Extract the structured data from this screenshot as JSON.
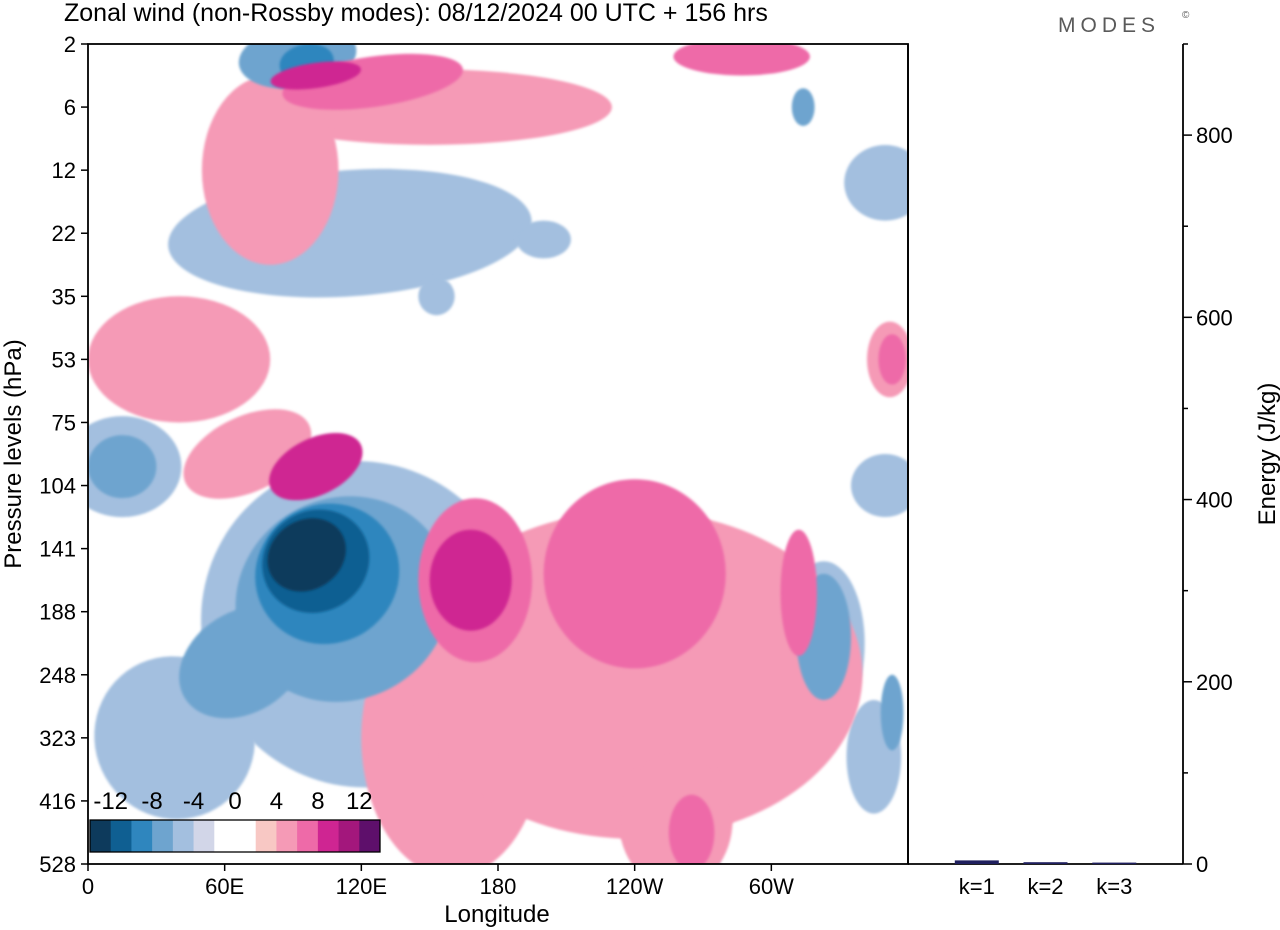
{
  "title": "Zonal wind (non-Rossby modes):  08/12/2024  00 UTC  + 156 hrs",
  "brand": "MODES",
  "brand_mark": "©",
  "chart_data": [
    {
      "type": "heatmap",
      "title": "Zonal wind (non-Rossby modes):  08/12/2024  00 UTC  + 156 hrs",
      "xlabel": "Longitude",
      "ylabel": "Pressure levels (hPa)",
      "x_ticks": [
        {
          "lon": 0,
          "label": "0"
        },
        {
          "lon": 60,
          "label": "60E"
        },
        {
          "lon": 120,
          "label": "120E"
        },
        {
          "lon": 180,
          "label": "180"
        },
        {
          "lon": 240,
          "label": "120W"
        },
        {
          "lon": 300,
          "label": "60W"
        }
      ],
      "xlim": [
        0,
        360
      ],
      "y_levels": [
        "2",
        "6",
        "12",
        "22",
        "35",
        "53",
        "75",
        "104",
        "141",
        "188",
        "248",
        "323",
        "416",
        "528"
      ],
      "colorbar": {
        "tick_labels": [
          "-12",
          "-8",
          "-4",
          "0",
          "4",
          "8",
          "12"
        ],
        "colors": [
          "#0d3a5c",
          "#0f5f92",
          "#2f86be",
          "#6ea4cf",
          "#a3bfdf",
          "#d2d6e8",
          "#ffffff",
          "#ffffff",
          "#f8c8c4",
          "#f59ab6",
          "#ee6aa8",
          "#cf2592",
          "#a3177c",
          "#5e0f6b"
        ]
      },
      "blobs": [
        {
          "level": -3,
          "lon": 115,
          "lev": 3.0,
          "rx": 80,
          "ry": 1.0,
          "rot": -4
        },
        {
          "level": -3,
          "lon": 350,
          "lev": 2.2,
          "rx": 18,
          "ry": 0.6,
          "rot": 0
        },
        {
          "level": -3,
          "lon": 15,
          "lev": 6.7,
          "rx": 26,
          "ry": 0.8,
          "rot": 0
        },
        {
          "level": -3,
          "lon": 120,
          "lev": 9.2,
          "rx": 70,
          "ry": 2.6,
          "rot": -26
        },
        {
          "level": -3,
          "lon": 38,
          "lev": 11.0,
          "rx": 35,
          "ry": 1.3,
          "rot": -30
        },
        {
          "level": -3,
          "lon": 292,
          "lev": 9.0,
          "rx": 28,
          "ry": 0.9,
          "rot": 0
        },
        {
          "level": -3,
          "lon": 323,
          "lev": 9.5,
          "rx": 18,
          "ry": 1.3,
          "rot": 0
        },
        {
          "level": -3,
          "lon": 345,
          "lev": 11.3,
          "rx": 12,
          "ry": 0.9,
          "rot": 0
        },
        {
          "level": -3,
          "lon": 350,
          "lev": 7.0,
          "rx": 15,
          "ry": 0.5,
          "rot": 0
        },
        {
          "level": -3,
          "lon": 270,
          "lev": 12.6,
          "rx": 8,
          "ry": 0.9,
          "rot": 0
        },
        {
          "level": -3,
          "lon": 153,
          "lev": 4.0,
          "rx": 8,
          "ry": 0.3,
          "rot": 0
        },
        {
          "level": -3,
          "lon": 200,
          "lev": 3.1,
          "rx": 12,
          "ry": 0.3,
          "rot": 0
        },
        {
          "level": -5,
          "lon": 92,
          "lev": 0.2,
          "rx": 26,
          "ry": 0.5,
          "rot": -8
        },
        {
          "level": -5,
          "lon": 15,
          "lev": 6.7,
          "rx": 15,
          "ry": 0.5,
          "rot": 0
        },
        {
          "level": -5,
          "lon": 112,
          "lev": 8.8,
          "rx": 48,
          "ry": 1.6,
          "rot": -28
        },
        {
          "level": -5,
          "lon": 68,
          "lev": 9.8,
          "rx": 30,
          "ry": 0.8,
          "rot": -32
        },
        {
          "level": -5,
          "lon": 323,
          "lev": 9.4,
          "rx": 12,
          "ry": 1.0,
          "rot": 0
        },
        {
          "level": -5,
          "lon": 353,
          "lev": 10.6,
          "rx": 5,
          "ry": 0.6,
          "rot": 0
        },
        {
          "level": -5,
          "lon": 314,
          "lev": 1.0,
          "rx": 5,
          "ry": 0.3,
          "rot": 0
        },
        {
          "level": -7,
          "lon": 96,
          "lev": 0.3,
          "rx": 12,
          "ry": 0.3,
          "rot": -10
        },
        {
          "level": -7,
          "lon": 105,
          "lev": 8.4,
          "rx": 32,
          "ry": 1.1,
          "rot": -30
        },
        {
          "level": -9,
          "lon": 100,
          "lev": 8.2,
          "rx": 24,
          "ry": 0.8,
          "rot": -32
        },
        {
          "level": -11,
          "lon": 96,
          "lev": 8.1,
          "rx": 18,
          "ry": 0.55,
          "rot": -33
        },
        {
          "level": 3,
          "lon": 150,
          "lev": 1.0,
          "rx": 80,
          "ry": 0.6,
          "rot": 0
        },
        {
          "level": 3,
          "lon": 160,
          "lev": 11.0,
          "rx": 40,
          "ry": 2.2,
          "rot": 0
        },
        {
          "level": 3,
          "lon": 240,
          "lev": 10.0,
          "rx": 100,
          "ry": 2.6,
          "rot": 0
        },
        {
          "level": 3,
          "lon": 40,
          "lev": 5.0,
          "rx": 40,
          "ry": 1.0,
          "rot": 0
        },
        {
          "level": 3,
          "lon": 80,
          "lev": 2.0,
          "rx": 30,
          "ry": 1.5,
          "rot": 0
        },
        {
          "level": 3,
          "lon": 258,
          "lev": 12.3,
          "rx": 25,
          "ry": 1.1,
          "rot": 0
        },
        {
          "level": 3,
          "lon": 70,
          "lev": 6.5,
          "rx": 30,
          "ry": 0.6,
          "rot": -25
        },
        {
          "level": 3,
          "lon": 352,
          "lev": 5.0,
          "rx": 10,
          "ry": 0.6,
          "rot": 0
        },
        {
          "level": 5,
          "lon": 170,
          "lev": 8.5,
          "rx": 25,
          "ry": 1.3,
          "rot": 0
        },
        {
          "level": 5,
          "lon": 240,
          "lev": 8.4,
          "rx": 40,
          "ry": 1.5,
          "rot": 0
        },
        {
          "level": 5,
          "lon": 125,
          "lev": 0.6,
          "rx": 40,
          "ry": 0.4,
          "rot": -8
        },
        {
          "level": 5,
          "lon": 265,
          "lev": 12.5,
          "rx": 10,
          "ry": 0.6,
          "rot": 0
        },
        {
          "level": 5,
          "lon": 312,
          "lev": 8.7,
          "rx": 8,
          "ry": 1.0,
          "rot": 0
        },
        {
          "level": 5,
          "lon": 353,
          "lev": 5.0,
          "rx": 6,
          "ry": 0.4,
          "rot": 0
        },
        {
          "level": 5,
          "lon": 287,
          "lev": 0.2,
          "rx": 30,
          "ry": 0.3,
          "rot": 0
        },
        {
          "level": 7,
          "lon": 168,
          "lev": 8.5,
          "rx": 18,
          "ry": 0.8,
          "rot": 0
        },
        {
          "level": 7,
          "lon": 100,
          "lev": 0.5,
          "rx": 20,
          "ry": 0.2,
          "rot": -8
        },
        {
          "level": 7,
          "lon": 100,
          "lev": 6.7,
          "rx": 22,
          "ry": 0.45,
          "rot": -26
        }
      ],
      "energy_axis": {
        "ylabel": "Energy (J/kg)",
        "ylim": [
          0,
          900
        ],
        "ticks": [
          0,
          200,
          400,
          600,
          800
        ],
        "categories": [
          "k=1",
          "k=2",
          "k=3"
        ],
        "values": [
          4,
          2,
          1.5
        ],
        "bar_color": "#1f1f5e"
      }
    }
  ]
}
